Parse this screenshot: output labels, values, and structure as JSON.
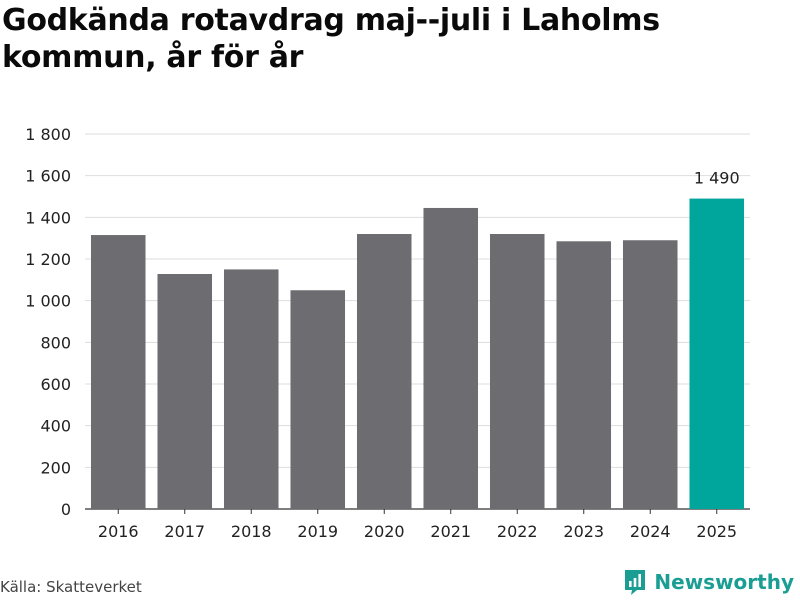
{
  "title": "Godkända rotavdrag maj--juli i Laholms kommun, år för år",
  "source": "Källa: Skatteverket",
  "brand": {
    "name": "Newsworthy",
    "icon": "newsworthy-logo-icon",
    "color": "#1a9e94"
  },
  "colors": {
    "bar": "#6d6c70",
    "highlight": "#00a59b",
    "grid": "#dddddd",
    "axis": "#333333"
  },
  "chart_data": {
    "type": "bar",
    "title": "Godkända rotavdrag maj--juli i Laholms kommun, år för år",
    "xlabel": "",
    "ylabel": "",
    "categories": [
      "2016",
      "2017",
      "2018",
      "2019",
      "2020",
      "2021",
      "2022",
      "2023",
      "2024",
      "2025"
    ],
    "values": [
      1315,
      1128,
      1150,
      1050,
      1320,
      1445,
      1320,
      1285,
      1290,
      1490
    ],
    "highlight_index": 9,
    "data_labels": [
      {
        "index": 9,
        "text": "1 490"
      }
    ],
    "ylim": [
      0,
      1800
    ],
    "yticks": [
      0,
      200,
      400,
      600,
      800,
      1000,
      1200,
      1400,
      1600,
      1800
    ],
    "ytick_labels": [
      "0",
      "200",
      "400",
      "600",
      "800",
      "1 000",
      "1 200",
      "1 400",
      "1 600",
      "1 800"
    ],
    "grid": true,
    "legend": "none"
  }
}
